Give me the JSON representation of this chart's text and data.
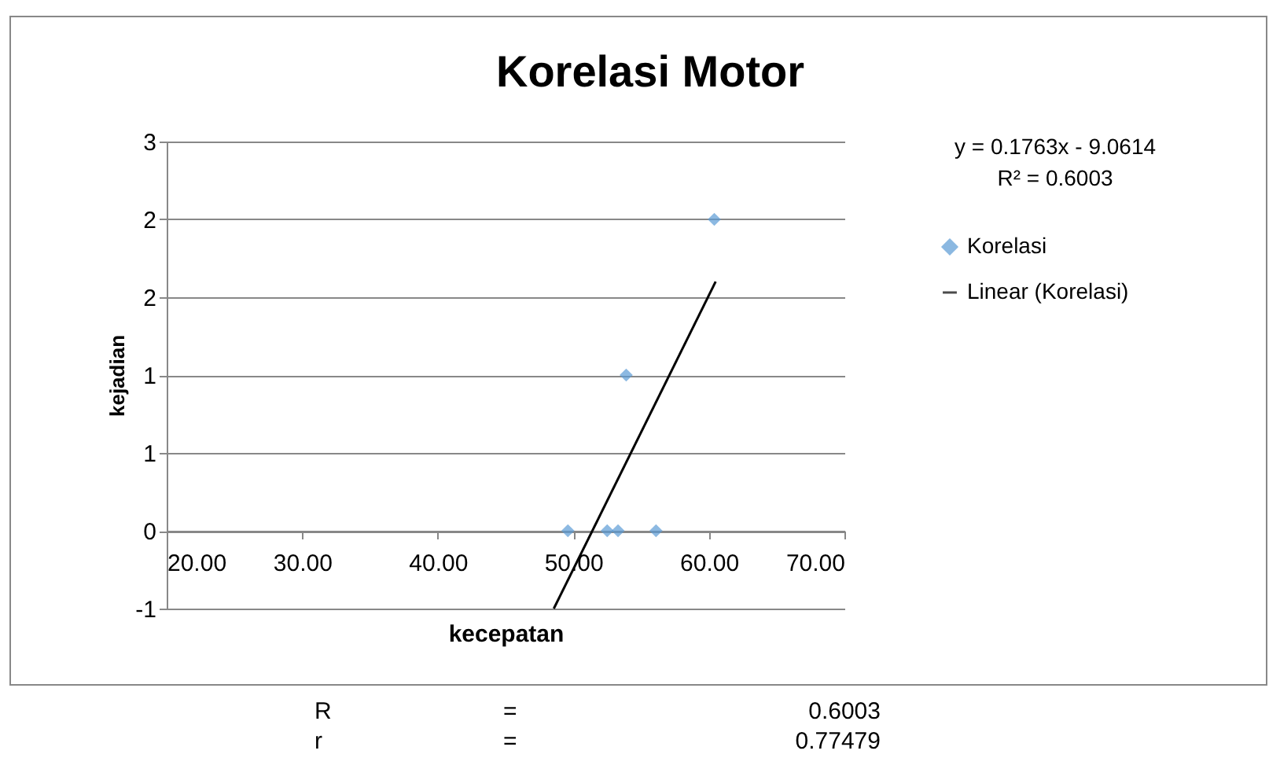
{
  "chart_data": {
    "type": "scatter",
    "title": "Korelasi Motor",
    "xlabel": "kecepatan",
    "ylabel": "kejadian",
    "annotations": [
      "y = 0.1763x - 9.0614",
      "R² = 0.6003",
      "R = 0.6003",
      "r = 0.77479"
    ],
    "xlim": [
      20,
      70
    ],
    "xticks": [
      {
        "value": 20,
        "label": "20.00"
      },
      {
        "value": 30,
        "label": "30.00"
      },
      {
        "value": 40,
        "label": "40.00"
      },
      {
        "value": 50,
        "label": "50.00"
      },
      {
        "value": 60,
        "label": "60.00"
      },
      {
        "value": 70,
        "label": "70.00"
      }
    ],
    "ylim": [
      -0.5,
      2.5
    ],
    "yticks": [
      {
        "value": -0.5,
        "label": "-1"
      },
      {
        "value": 0,
        "label": "0"
      },
      {
        "value": 0.5,
        "label": "1"
      },
      {
        "value": 1,
        "label": "1"
      },
      {
        "value": 1.5,
        "label": "2"
      },
      {
        "value": 2,
        "label": "2"
      },
      {
        "value": 2.5,
        "label": "3"
      }
    ],
    "grid": "y",
    "legend": "right",
    "series": [
      {
        "name": "Korelasi",
        "marker": "diamond",
        "color": "#5b9bd5",
        "x": [
          49.6,
          52.5,
          53.3,
          56.1,
          53.9,
          60.4
        ],
        "values": [
          0,
          0,
          0,
          0,
          1,
          2
        ]
      },
      {
        "name": "Linear (Korelasi)",
        "type": "line",
        "marker": "none",
        "color": "#000000",
        "x": [
          48.56,
          60.5
        ],
        "values": [
          -0.5,
          1.6
        ]
      }
    ]
  }
}
